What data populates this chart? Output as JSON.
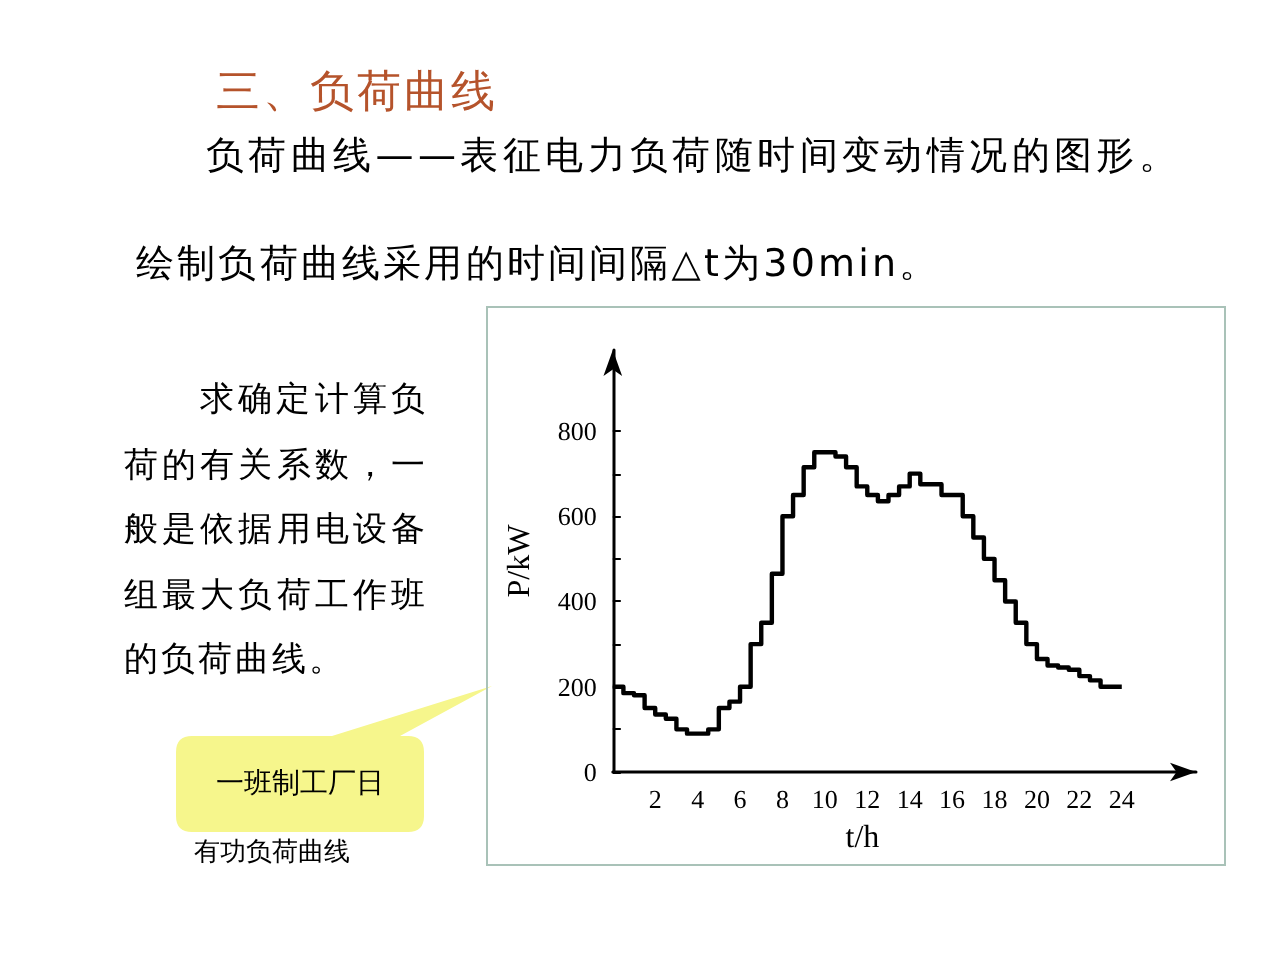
{
  "chart_data": {
    "type": "step",
    "title": "三、负荷曲线",
    "subtitle": "负荷曲线——表征电力负荷随时间变动情况的图形。",
    "xlabel": "t/h",
    "ylabel": "P/kW",
    "annotations": [
      "绘制负荷曲线采用的时间间隔△t为30min。",
      "求确定计算负荷的有关系数，一般是依据用电设备组最大负荷工作班的负荷曲线。",
      "一班制工厂日",
      "有功负荷曲线"
    ],
    "x": [
      0,
      0.5,
      1,
      1.5,
      2,
      2.5,
      3,
      3.5,
      4,
      4.5,
      5,
      5.5,
      6,
      6.5,
      7,
      7.5,
      8,
      8.5,
      9,
      9.5,
      10,
      10.5,
      11,
      11.5,
      12,
      12.5,
      13,
      13.5,
      14,
      14.5,
      15,
      15.5,
      16,
      16.5,
      17,
      17.5,
      18,
      18.5,
      19,
      19.5,
      20,
      20.5,
      21,
      21.5,
      22,
      22.5,
      23,
      23.5,
      24
    ],
    "values": [
      200,
      185,
      180,
      150,
      135,
      125,
      100,
      90,
      90,
      100,
      150,
      165,
      200,
      300,
      350,
      465,
      600,
      650,
      715,
      750,
      750,
      740,
      715,
      670,
      650,
      635,
      650,
      670,
      700,
      675,
      675,
      650,
      650,
      600,
      550,
      500,
      450,
      400,
      350,
      300,
      265,
      250,
      245,
      240,
      225,
      215,
      200,
      200,
      200
    ],
    "color": "#000000",
    "xlim": [
      0,
      27.5
    ],
    "ylim": [
      0,
      990
    ],
    "xticks": [
      2,
      4,
      6,
      8,
      10,
      12,
      14,
      16,
      18,
      20,
      22,
      24
    ],
    "yticks": [
      0,
      {
        "value": 100,
        "label": null
      },
      200,
      {
        "value": 300,
        "label": null
      },
      400,
      {
        "value": 500,
        "label": null
      },
      600,
      {
        "value": 700,
        "label": null
      },
      800
    ]
  }
}
